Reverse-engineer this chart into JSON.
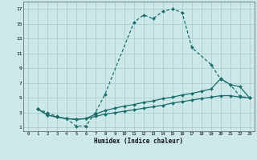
{
  "xlabel": "Humidex (Indice chaleur)",
  "xlim": [
    -0.5,
    23.5
  ],
  "ylim": [
    0.5,
    18.0
  ],
  "xticks": [
    0,
    1,
    2,
    3,
    4,
    5,
    6,
    7,
    8,
    9,
    10,
    11,
    12,
    13,
    14,
    15,
    16,
    17,
    18,
    19,
    20,
    21,
    22,
    23
  ],
  "yticks": [
    1,
    3,
    5,
    7,
    9,
    11,
    13,
    15,
    17
  ],
  "bg_color": "#cce8e8",
  "line_color": "#1a6b6b",
  "grid_color": "#aad0d0",
  "series": [
    {
      "x": [
        1,
        2,
        3,
        4,
        5,
        6,
        7,
        8,
        11,
        12,
        13,
        14,
        15,
        16,
        17,
        19,
        20,
        21,
        22,
        23
      ],
      "y": [
        3.5,
        3.0,
        2.5,
        2.2,
        1.2,
        1.2,
        3.0,
        5.5,
        15.2,
        16.2,
        15.7,
        16.7,
        17.0,
        16.5,
        11.8,
        9.5,
        7.5,
        6.8,
        5.2,
        5.0
      ]
    },
    {
      "x": [
        1,
        2,
        3,
        4,
        5,
        6,
        7,
        8,
        9,
        10,
        11,
        12,
        13,
        14,
        15,
        16,
        17,
        18,
        19,
        20,
        21,
        22,
        23
      ],
      "y": [
        3.5,
        2.7,
        2.4,
        2.2,
        2.1,
        2.2,
        2.5,
        2.8,
        3.0,
        3.2,
        3.4,
        3.6,
        3.8,
        4.0,
        4.3,
        4.5,
        4.7,
        4.9,
        5.1,
        5.3,
        5.3,
        5.1,
        5.0
      ]
    },
    {
      "x": [
        1,
        2,
        3,
        4,
        5,
        6,
        7,
        8,
        9,
        10,
        11,
        12,
        13,
        14,
        15,
        16,
        17,
        18,
        19,
        20,
        21,
        22,
        23
      ],
      "y": [
        3.5,
        2.7,
        2.4,
        2.2,
        2.1,
        2.2,
        2.8,
        3.3,
        3.6,
        3.9,
        4.1,
        4.4,
        4.6,
        4.9,
        5.1,
        5.4,
        5.6,
        5.9,
        6.2,
        7.6,
        6.8,
        6.5,
        5.0
      ]
    }
  ]
}
